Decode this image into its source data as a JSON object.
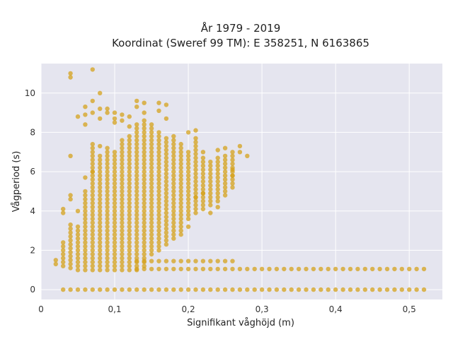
{
  "chart_data": {
    "type": "scatter",
    "title": "År 1979 - 2019",
    "subtitle": "Koordinat (Sweref 99 TM): E 358251, N 6163865",
    "xlabel": "Signifikant våghöjd (m)",
    "ylabel": "Vågperiod (s)",
    "xlim": [
      0,
      0.545
    ],
    "ylim": [
      -0.5,
      11.5
    ],
    "x_ticks": [
      0,
      0.1,
      0.2,
      0.3,
      0.4,
      0.5
    ],
    "x_tick_labels": [
      "0",
      "0,1",
      "0,2",
      "0,3",
      "0,4",
      "0,5"
    ],
    "y_ticks": [
      0,
      2,
      4,
      6,
      8,
      10
    ],
    "y_tick_labels": [
      "0",
      "2",
      "4",
      "6",
      "8",
      "10"
    ],
    "grid": true,
    "marker_color": "#D4A21C",
    "background_color": "#E5E5EF",
    "column_step": 0.01,
    "column_ranges": [
      {
        "x": 0.02,
        "ymin": 1.3,
        "ymax": 1.6
      },
      {
        "x": 0.03,
        "ymin": 1.2,
        "ymax": 2.4
      },
      {
        "x": 0.04,
        "ymin": 1.1,
        "ymax": 3.4
      },
      {
        "x": 0.05,
        "ymin": 1.0,
        "ymax": 3.2
      },
      {
        "x": 0.06,
        "ymin": 1.0,
        "ymax": 5.0
      },
      {
        "x": 0.07,
        "ymin": 1.0,
        "ymax": 7.4
      },
      {
        "x": 0.08,
        "ymin": 1.0,
        "ymax": 6.8
      },
      {
        "x": 0.09,
        "ymin": 1.0,
        "ymax": 7.2
      },
      {
        "x": 0.1,
        "ymin": 1.0,
        "ymax": 7.0
      },
      {
        "x": 0.11,
        "ymin": 1.0,
        "ymax": 7.6
      },
      {
        "x": 0.12,
        "ymin": 1.0,
        "ymax": 7.8
      },
      {
        "x": 0.13,
        "ymin": 1.0,
        "ymax": 8.4
      },
      {
        "x": 0.14,
        "ymin": 1.2,
        "ymax": 8.6
      },
      {
        "x": 0.15,
        "ymin": 1.8,
        "ymax": 8.4
      },
      {
        "x": 0.16,
        "ymin": 2.0,
        "ymax": 8.0
      },
      {
        "x": 0.17,
        "ymin": 2.3,
        "ymax": 7.8
      },
      {
        "x": 0.18,
        "ymin": 2.6,
        "ymax": 7.8
      },
      {
        "x": 0.19,
        "ymin": 3.0,
        "ymax": 7.4
      },
      {
        "x": 0.2,
        "ymin": 3.6,
        "ymax": 7.0
      },
      {
        "x": 0.21,
        "ymin": 3.9,
        "ymax": 7.8
      },
      {
        "x": 0.22,
        "ymin": 4.1,
        "ymax": 6.8
      },
      {
        "x": 0.23,
        "ymin": 4.3,
        "ymax": 6.6
      },
      {
        "x": 0.24,
        "ymin": 4.5,
        "ymax": 6.8
      },
      {
        "x": 0.25,
        "ymin": 4.8,
        "ymax": 6.9
      },
      {
        "x": 0.26,
        "ymin": 5.2,
        "ymax": 6.9
      }
    ],
    "bands": [
      {
        "y": 0.0,
        "xmin": 0.03,
        "xmax": 0.52
      },
      {
        "y": 1.05,
        "xmin": 0.13,
        "xmax": 0.52
      },
      {
        "y": 1.45,
        "xmin": 0.13,
        "xmax": 0.26
      }
    ],
    "points": [
      [
        0.04,
        10.8
      ],
      [
        0.04,
        11.0
      ],
      [
        0.07,
        11.2
      ],
      [
        0.08,
        10.0
      ],
      [
        0.04,
        6.8
      ],
      [
        0.05,
        8.8
      ],
      [
        0.06,
        8.9
      ],
      [
        0.06,
        9.3
      ],
      [
        0.06,
        8.4
      ],
      [
        0.07,
        9.6
      ],
      [
        0.07,
        9.0
      ],
      [
        0.08,
        9.2
      ],
      [
        0.08,
        8.7
      ],
      [
        0.09,
        9.0
      ],
      [
        0.09,
        9.2
      ],
      [
        0.1,
        8.5
      ],
      [
        0.1,
        9.0
      ],
      [
        0.1,
        8.7
      ],
      [
        0.11,
        8.6
      ],
      [
        0.11,
        8.9
      ],
      [
        0.12,
        8.8
      ],
      [
        0.12,
        8.3
      ],
      [
        0.13,
        9.6
      ],
      [
        0.13,
        9.3
      ],
      [
        0.14,
        9.5
      ],
      [
        0.14,
        9.0
      ],
      [
        0.16,
        9.5
      ],
      [
        0.16,
        9.1
      ],
      [
        0.17,
        9.4
      ],
      [
        0.17,
        8.7
      ],
      [
        0.2,
        8.0
      ],
      [
        0.21,
        8.1
      ],
      [
        0.22,
        7.0
      ],
      [
        0.24,
        7.1
      ],
      [
        0.25,
        7.2
      ],
      [
        0.26,
        7.0
      ],
      [
        0.27,
        7.3
      ],
      [
        0.27,
        7.0
      ],
      [
        0.28,
        6.8
      ],
      [
        0.2,
        3.2
      ],
      [
        0.19,
        2.8
      ],
      [
        0.03,
        3.9
      ],
      [
        0.03,
        4.1
      ],
      [
        0.04,
        4.8
      ],
      [
        0.04,
        4.6
      ],
      [
        0.05,
        4.0
      ],
      [
        0.06,
        5.7
      ],
      [
        0.07,
        6.0
      ],
      [
        0.08,
        7.3
      ],
      [
        0.21,
        4.7
      ],
      [
        0.22,
        4.9
      ],
      [
        0.23,
        3.9
      ],
      [
        0.24,
        4.2
      ],
      [
        0.26,
        5.8
      ],
      [
        0.26,
        6.1
      ]
    ]
  }
}
